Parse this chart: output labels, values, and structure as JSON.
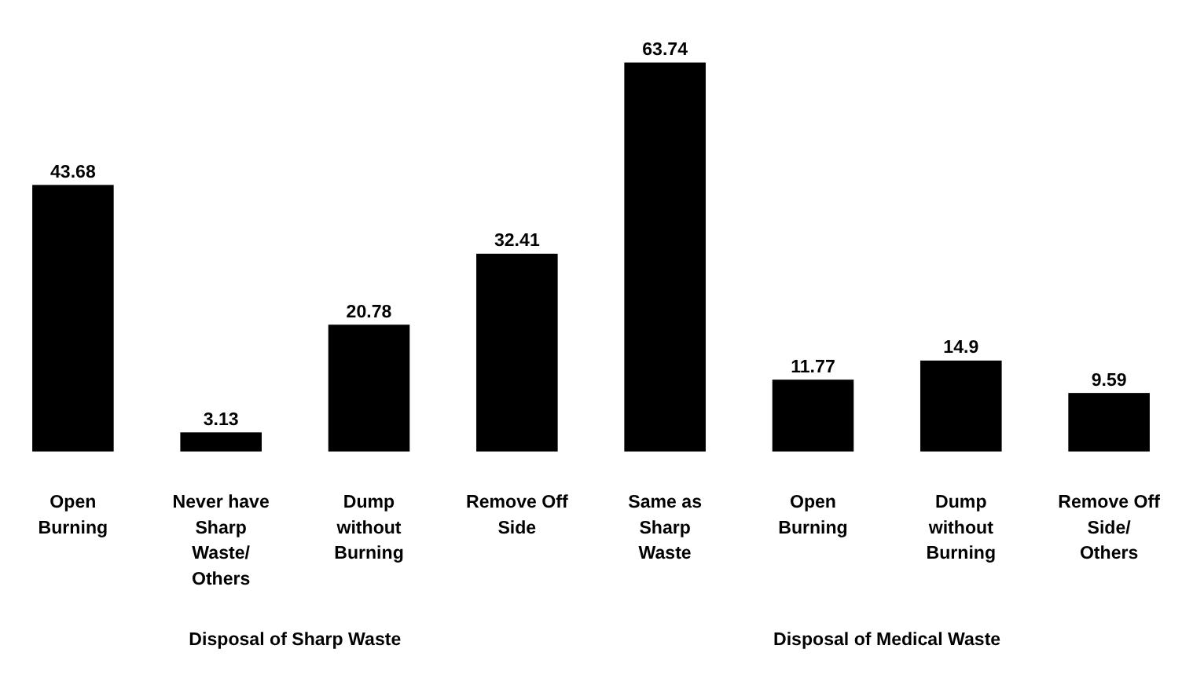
{
  "chart_data": {
    "type": "bar",
    "categories": [
      "Open Burning",
      "Never have Sharp Waste/ Others",
      "Dump without Burning",
      "Remove Off Side",
      "Same as Sharp Waste",
      "Open Burning",
      "Dump without Burning",
      "Remove Off Side/ Others"
    ],
    "values": [
      43.68,
      3.13,
      20.78,
      32.41,
      63.74,
      11.77,
      14.9,
      9.59
    ],
    "color": "#000000",
    "data_labels": true,
    "annotations": [
      "Disposal of Sharp Waste",
      "Disposal of Medical Waste"
    ]
  }
}
